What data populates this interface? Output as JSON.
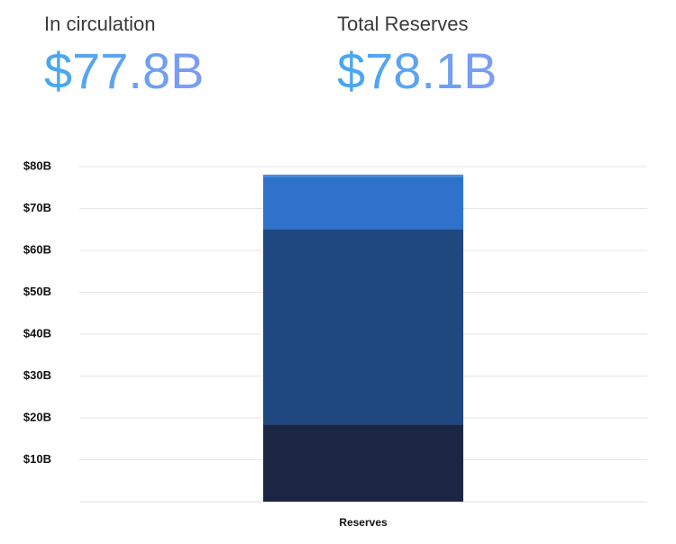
{
  "stats": [
    {
      "label": "In circulation",
      "value": "$77.8B"
    },
    {
      "label": "Total Reserves",
      "value": "$78.1B"
    }
  ],
  "chart_data": {
    "type": "stacked-bar",
    "categories": [
      "Reserves"
    ],
    "series": [
      {
        "color": "#1b2643",
        "values": [
          18.4
        ]
      },
      {
        "color": "#1f4780",
        "values": [
          46.7
        ]
      },
      {
        "color": "#2e72cc",
        "values": [
          12.5
        ]
      },
      {
        "color": "#4a8fe0",
        "values": [
          0.5
        ]
      }
    ],
    "ylim": [
      0,
      80
    ],
    "yticks": [
      {
        "value": 10,
        "label": "$10B"
      },
      {
        "value": 20,
        "label": "$20B"
      },
      {
        "value": 30,
        "label": "$30B"
      },
      {
        "value": 40,
        "label": "$40B"
      },
      {
        "value": 50,
        "label": "$50B"
      },
      {
        "value": 60,
        "label": "$60B"
      },
      {
        "value": 70,
        "label": "$70B"
      },
      {
        "value": 80,
        "label": "$80B"
      }
    ],
    "grid": true
  }
}
